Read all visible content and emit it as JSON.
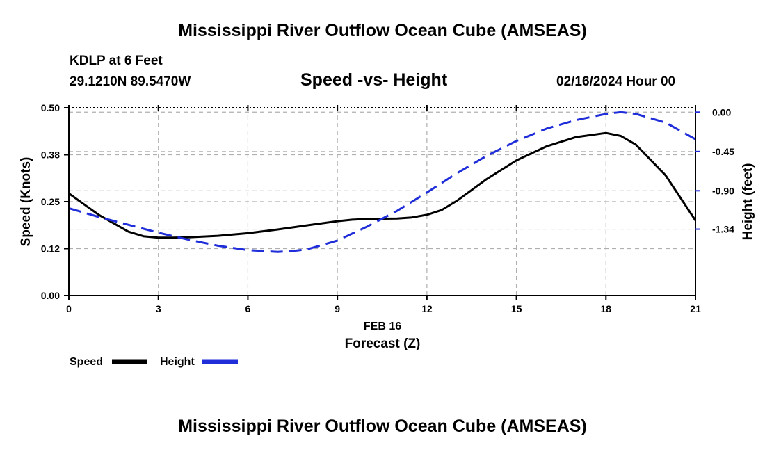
{
  "header": {
    "title": "Mississippi River Outflow Ocean Cube (AMSEAS)",
    "station": "KDLP at 6 Feet",
    "coords": "29.1210N  89.5470W",
    "subtitle": "Speed -vs- Height",
    "datetime": "02/16/2024 Hour 00"
  },
  "footer": {
    "title": "Mississippi River Outflow Ocean Cube (AMSEAS)"
  },
  "chart_data": {
    "type": "line",
    "x_ticks": [
      0,
      3,
      6,
      9,
      12,
      15,
      18,
      21
    ],
    "x_tick_labels": [
      "0",
      "3",
      "6",
      "9",
      "12",
      "15",
      "18",
      "21"
    ],
    "xlim": [
      0,
      21
    ],
    "xlabel_date": "FEB 16",
    "xlabel": "Forecast (Z)",
    "ylabel_left": "Speed (Knots)",
    "ylim_left": [
      0,
      0.5
    ],
    "left_ticks": [
      0.0,
      0.125,
      0.25,
      0.375,
      0.5
    ],
    "left_tick_labels": [
      "0.00",
      "0.12",
      "0.25",
      "0.38",
      "0.50"
    ],
    "ylabel_right": "Height (feet)",
    "ylim_right": [
      -2.1,
      0.05
    ],
    "right_ticks": [
      0.0,
      -0.45,
      -0.9,
      -1.34
    ],
    "right_tick_labels": [
      "0.00",
      "-0.45",
      "-0.90",
      "-1.34"
    ],
    "grid": true,
    "series": [
      {
        "name": "Speed",
        "axis": "left",
        "color": "#000000",
        "dashed": false,
        "x": [
          0,
          1,
          2,
          2.5,
          3,
          3.5,
          4,
          5,
          6,
          7,
          8,
          9,
          9.5,
          10,
          11,
          11.5,
          12,
          12.5,
          13,
          14,
          15,
          16,
          17,
          18,
          18.5,
          19,
          20,
          21
        ],
        "values": [
          0.272,
          0.215,
          0.17,
          0.158,
          0.154,
          0.154,
          0.155,
          0.159,
          0.166,
          0.176,
          0.187,
          0.198,
          0.202,
          0.204,
          0.205,
          0.208,
          0.215,
          0.228,
          0.252,
          0.31,
          0.36,
          0.397,
          0.422,
          0.433,
          0.425,
          0.402,
          0.32,
          0.2
        ]
      },
      {
        "name": "Height",
        "axis": "right",
        "color": "#1f2ed8",
        "dashed": true,
        "x": [
          0,
          1,
          2,
          3,
          4,
          5,
          6,
          7,
          7.5,
          8,
          9,
          10,
          11,
          12,
          13,
          14,
          15,
          16,
          17,
          18,
          18.5,
          19,
          20,
          21
        ],
        "values": [
          -1.1,
          -1.2,
          -1.29,
          -1.38,
          -1.46,
          -1.53,
          -1.58,
          -1.6,
          -1.59,
          -1.57,
          -1.47,
          -1.31,
          -1.13,
          -0.92,
          -0.7,
          -0.5,
          -0.33,
          -0.19,
          -0.09,
          -0.02,
          0.0,
          -0.02,
          -0.12,
          -0.31
        ]
      }
    ]
  }
}
